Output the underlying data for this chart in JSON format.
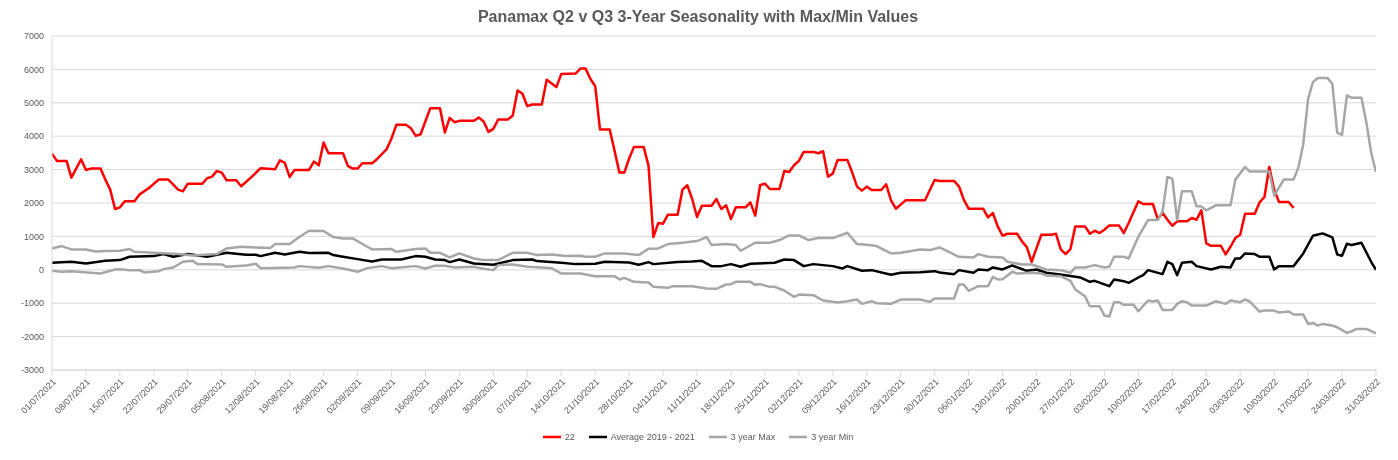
{
  "chart_data": {
    "type": "line",
    "title": "Panamax Q2 v Q3 3-Year Seasonality with Max/Min Values",
    "xlim": [
      "2021-07-01",
      "2022-03-31"
    ],
    "xticks": [
      {
        "value": "2021-07-01",
        "label": "01/07/2021"
      },
      {
        "value": "2021-07-08",
        "label": "08/07/2021"
      },
      {
        "value": "2021-07-15",
        "label": "15/07/2021"
      },
      {
        "value": "2021-07-22",
        "label": "22/07/2021"
      },
      {
        "value": "2021-07-29",
        "label": "29/07/2021"
      },
      {
        "value": "2021-08-05",
        "label": "05/08/2021"
      },
      {
        "value": "2021-08-12",
        "label": "12/08/2021"
      },
      {
        "value": "2021-08-19",
        "label": "19/08/2021"
      },
      {
        "value": "2021-08-26",
        "label": "26/08/2021"
      },
      {
        "value": "2021-09-02",
        "label": "02/09/2021"
      },
      {
        "value": "2021-09-09",
        "label": "09/09/2021"
      },
      {
        "value": "2021-09-16",
        "label": "16/09/2021"
      },
      {
        "value": "2021-09-23",
        "label": "23/09/2021"
      },
      {
        "value": "2021-09-30",
        "label": "30/09/2021"
      },
      {
        "value": "2021-10-07",
        "label": "07/10/2021"
      },
      {
        "value": "2021-10-14",
        "label": "14/10/2021"
      },
      {
        "value": "2021-10-21",
        "label": "21/10/2021"
      },
      {
        "value": "2021-10-28",
        "label": "28/10/2021"
      },
      {
        "value": "2021-11-04",
        "label": "04/11/2021"
      },
      {
        "value": "2021-11-11",
        "label": "11/11/2021"
      },
      {
        "value": "2021-11-18",
        "label": "18/11/2021"
      },
      {
        "value": "2021-11-25",
        "label": "25/11/2021"
      },
      {
        "value": "2021-12-02",
        "label": "02/12/2021"
      },
      {
        "value": "2021-12-09",
        "label": "09/12/2021"
      },
      {
        "value": "2021-12-16",
        "label": "16/12/2021"
      },
      {
        "value": "2021-12-23",
        "label": "23/12/2021"
      },
      {
        "value": "2021-12-30",
        "label": "30/12/2021"
      },
      {
        "value": "2022-01-06",
        "label": "06/01/2022"
      },
      {
        "value": "2022-01-13",
        "label": "13/01/2022"
      },
      {
        "value": "2022-01-20",
        "label": "20/01/2022"
      },
      {
        "value": "2022-01-27",
        "label": "27/01/2022"
      },
      {
        "value": "2022-02-03",
        "label": "03/02/2022"
      },
      {
        "value": "2022-02-10",
        "label": "10/02/2022"
      },
      {
        "value": "2022-02-17",
        "label": "17/02/2022"
      },
      {
        "value": "2022-02-24",
        "label": "24/02/2022"
      },
      {
        "value": "2022-03-03",
        "label": "03/03/2022"
      },
      {
        "value": "2022-03-10",
        "label": "10/03/2022"
      },
      {
        "value": "2022-03-17",
        "label": "17/03/2022"
      },
      {
        "value": "2022-03-24",
        "label": "24/03/2022"
      },
      {
        "value": "2022-03-31",
        "label": "31/03/2022"
      }
    ],
    "ylim": [
      -3000,
      7000
    ],
    "yticks": [
      -3000,
      -2000,
      -1000,
      0,
      1000,
      2000,
      3000,
      4000,
      5000,
      6000,
      7000
    ],
    "grid": "y",
    "legend": "bottom",
    "series": [
      {
        "name": "22",
        "color": "#ff0000",
        "x": [
          "2021-07-01",
          "2021-07-02",
          "2021-07-04",
          "2021-07-05",
          "2021-07-07",
          "2021-07-08",
          "2021-07-09",
          "2021-07-11",
          "2021-07-12",
          "2021-07-13",
          "2021-07-14",
          "2021-07-15",
          "2021-07-16",
          "2021-07-18",
          "2021-07-19",
          "2021-07-21",
          "2021-07-23",
          "2021-07-25",
          "2021-07-27",
          "2021-07-28",
          "2021-07-29",
          "2021-08-01",
          "2021-08-02",
          "2021-08-03",
          "2021-08-04",
          "2021-08-05",
          "2021-08-06",
          "2021-08-08",
          "2021-08-09",
          "2021-08-11",
          "2021-08-13",
          "2021-08-16",
          "2021-08-17",
          "2021-08-18",
          "2021-08-19",
          "2021-08-20",
          "2021-08-23",
          "2021-08-24",
          "2021-08-25",
          "2021-08-26",
          "2021-08-27",
          "2021-08-30",
          "2021-08-31",
          "2021-09-01",
          "2021-09-02",
          "2021-09-03",
          "2021-09-05",
          "2021-09-06",
          "2021-09-08",
          "2021-09-09",
          "2021-09-10",
          "2021-09-12",
          "2021-09-13",
          "2021-09-14",
          "2021-09-15",
          "2021-09-17",
          "2021-09-19",
          "2021-09-20",
          "2021-09-21",
          "2021-09-22",
          "2021-09-23",
          "2021-09-26",
          "2021-09-27",
          "2021-09-28",
          "2021-09-29",
          "2021-09-30",
          "2021-10-01",
          "2021-10-03",
          "2021-10-04",
          "2021-10-05",
          "2021-10-06",
          "2021-10-07",
          "2021-10-08",
          "2021-10-10",
          "2021-10-11",
          "2021-10-13",
          "2021-10-14",
          "2021-10-17",
          "2021-10-18",
          "2021-10-19",
          "2021-10-20",
          "2021-10-21",
          "2021-10-22",
          "2021-10-24",
          "2021-10-25",
          "2021-10-26",
          "2021-10-27",
          "2021-10-28",
          "2021-10-29",
          "2021-10-31",
          "2021-11-01",
          "2021-11-02",
          "2021-11-03",
          "2021-11-04",
          "2021-11-05",
          "2021-11-07",
          "2021-11-08",
          "2021-11-09",
          "2021-11-10",
          "2021-11-11",
          "2021-11-12",
          "2021-11-14",
          "2021-11-15",
          "2021-11-16",
          "2021-11-17",
          "2021-11-18",
          "2021-11-19",
          "2021-11-21",
          "2021-11-22",
          "2021-11-23",
          "2021-11-24",
          "2021-11-25",
          "2021-11-26",
          "2021-11-28",
          "2021-11-29",
          "2021-11-30",
          "2021-12-01",
          "2021-12-02",
          "2021-12-03",
          "2021-12-05",
          "2021-12-06",
          "2021-12-07",
          "2021-12-08",
          "2021-12-09",
          "2021-12-10",
          "2021-12-12",
          "2021-12-13",
          "2021-12-14",
          "2021-12-15",
          "2021-12-16",
          "2021-12-17",
          "2021-12-19",
          "2021-12-20",
          "2021-12-21",
          "2021-12-22",
          "2021-12-24",
          "2021-12-28",
          "2021-12-30",
          "2021-12-31",
          "2022-01-03",
          "2022-01-04",
          "2022-01-05",
          "2022-01-06",
          "2022-01-09",
          "2022-01-10",
          "2022-01-11",
          "2022-01-12",
          "2022-01-13",
          "2022-01-14",
          "2022-01-16",
          "2022-01-17",
          "2022-01-18",
          "2022-01-19",
          "2022-01-20",
          "2022-01-21",
          "2022-01-23",
          "2022-01-24",
          "2022-01-25",
          "2022-01-26",
          "2022-01-27",
          "2022-01-28",
          "2022-01-30",
          "2022-01-31",
          "2022-02-01",
          "2022-02-02",
          "2022-02-03",
          "2022-02-04",
          "2022-02-06",
          "2022-02-07",
          "2022-02-08",
          "2022-02-10",
          "2022-02-11",
          "2022-02-13",
          "2022-02-14",
          "2022-02-15",
          "2022-02-16",
          "2022-02-17",
          "2022-02-18",
          "2022-02-20",
          "2022-02-21",
          "2022-02-22",
          "2022-02-23",
          "2022-02-24",
          "2022-02-25",
          "2022-02-27",
          "2022-02-28",
          "2022-03-01",
          "2022-03-02",
          "2022-03-03",
          "2022-03-04",
          "2022-03-06",
          "2022-03-07",
          "2022-03-08",
          "2022-03-09",
          "2022-03-10",
          "2022-03-11",
          "2022-03-13",
          "2022-03-14"
        ],
        "values": [
          3480,
          3260,
          3260,
          2760,
          3310,
          2990,
          3030,
          3030,
          2700,
          2400,
          1820,
          1870,
          2050,
          2050,
          2250,
          2450,
          2700,
          2700,
          2400,
          2350,
          2580,
          2580,
          2740,
          2790,
          2960,
          2910,
          2680,
          2680,
          2500,
          2760,
          3040,
          3010,
          3280,
          3200,
          2780,
          2990,
          2990,
          3240,
          3130,
          3810,
          3490,
          3490,
          3110,
          3030,
          3030,
          3190,
          3190,
          3310,
          3610,
          3930,
          4340,
          4340,
          4240,
          4010,
          4060,
          4840,
          4840,
          4110,
          4550,
          4420,
          4460,
          4460,
          4560,
          4440,
          4130,
          4220,
          4500,
          4500,
          4620,
          5370,
          5270,
          4900,
          4950,
          4950,
          5690,
          5470,
          5860,
          5880,
          6030,
          6030,
          5720,
          5500,
          4200,
          4200,
          3560,
          2910,
          2910,
          3330,
          3680,
          3680,
          3110,
          980,
          1400,
          1380,
          1650,
          1650,
          2400,
          2530,
          2120,
          1580,
          1920,
          1920,
          2120,
          1820,
          1930,
          1520,
          1870,
          1870,
          2020,
          1620,
          2530,
          2580,
          2420,
          2420,
          2960,
          2930,
          3130,
          3260,
          3530,
          3530,
          3490,
          3550,
          2790,
          2880,
          3290,
          3290,
          2910,
          2490,
          2370,
          2490,
          2390,
          2390,
          2560,
          2080,
          1830,
          2080,
          2080,
          2690,
          2660,
          2660,
          2500,
          2100,
          1830,
          1830,
          1570,
          1700,
          1300,
          1020,
          1080,
          1080,
          850,
          680,
          240,
          650,
          1050,
          1050,
          1080,
          610,
          470,
          620,
          1300,
          1300,
          1080,
          1170,
          1100,
          1200,
          1330,
          1330,
          1100,
          1400,
          2050,
          1970,
          1970,
          1520,
          1700,
          1500,
          1320,
          1450,
          1450,
          1550,
          1500,
          1780,
          790,
          720,
          720,
          460,
          690,
          950,
          1050,
          1680,
          1680,
          2020,
          2180,
          3080,
          2400,
          2030,
          2030,
          1850
        ]
      },
      {
        "name": "Average 2019 - 2021",
        "color": "#000000",
        "x": [
          "2021-07-01",
          "2021-07-05",
          "2021-07-08",
          "2021-07-12",
          "2021-07-15",
          "2021-07-17",
          "2021-07-22",
          "2021-07-24",
          "2021-07-26",
          "2021-07-29",
          "2021-08-02",
          "2021-08-06",
          "2021-08-10",
          "2021-08-12",
          "2021-08-13",
          "2021-08-16",
          "2021-08-18",
          "2021-08-21",
          "2021-08-23",
          "2021-08-27",
          "2021-08-28",
          "2021-08-30",
          "2021-09-02",
          "2021-09-05",
          "2021-09-07",
          "2021-09-11",
          "2021-09-14",
          "2021-09-16",
          "2021-09-18",
          "2021-09-20",
          "2021-09-21",
          "2021-09-23",
          "2021-09-26",
          "2021-09-30",
          "2021-10-04",
          "2021-10-08",
          "2021-10-09",
          "2021-10-14",
          "2021-10-17",
          "2021-10-21",
          "2021-10-23",
          "2021-10-28",
          "2021-10-30",
          "2021-11-01",
          "2021-11-02",
          "2021-11-07",
          "2021-11-10",
          "2021-11-12",
          "2021-11-14",
          "2021-11-16",
          "2021-11-18",
          "2021-11-20",
          "2021-11-22",
          "2021-11-27",
          "2021-11-29",
          "2021-12-01",
          "2021-12-03",
          "2021-12-05",
          "2021-12-09",
          "2021-12-11",
          "2021-12-12",
          "2021-12-15",
          "2021-12-17",
          "2021-12-21",
          "2021-12-23",
          "2021-12-27",
          "2021-12-30",
          "2021-12-31",
          "2022-01-03",
          "2022-01-04",
          "2022-01-07",
          "2022-01-08",
          "2022-01-10",
          "2022-01-11",
          "2022-01-13",
          "2022-01-15",
          "2022-01-18",
          "2022-01-20",
          "2022-01-22",
          "2022-01-26",
          "2022-01-29",
          "2022-01-31",
          "2022-02-01",
          "2022-02-04",
          "2022-02-05",
          "2022-02-07",
          "2022-02-08",
          "2022-02-10",
          "2022-02-11",
          "2022-02-12",
          "2022-02-15",
          "2022-02-16",
          "2022-02-17",
          "2022-02-18",
          "2022-02-19",
          "2022-02-21",
          "2022-02-22",
          "2022-02-25",
          "2022-02-27",
          "2022-03-01",
          "2022-03-02",
          "2022-03-03",
          "2022-03-04",
          "2022-03-06",
          "2022-03-07",
          "2022-03-09",
          "2022-03-10",
          "2022-03-11",
          "2022-03-14",
          "2022-03-16",
          "2022-03-18",
          "2022-03-20",
          "2022-03-22",
          "2022-03-23",
          "2022-03-24",
          "2022-03-25",
          "2022-03-26",
          "2022-03-28",
          "2022-03-30",
          "2022-03-31"
        ],
        "values": [
          210,
          240,
          190,
          270,
          290,
          390,
          410,
          470,
          390,
          470,
          390,
          510,
          450,
          450,
          410,
          510,
          460,
          540,
          500,
          510,
          440,
          390,
          320,
          250,
          310,
          310,
          410,
          390,
          310,
          290,
          230,
          310,
          190,
          150,
          290,
          310,
          260,
          210,
          170,
          180,
          240,
          220,
          150,
          230,
          170,
          230,
          250,
          270,
          110,
          110,
          170,
          90,
          180,
          210,
          310,
          290,
          110,
          170,
          110,
          40,
          110,
          -30,
          -10,
          -150,
          -90,
          -70,
          -40,
          -80,
          -130,
          -10,
          -90,
          10,
          -10,
          70,
          10,
          130,
          -30,
          10,
          -90,
          -160,
          -230,
          -360,
          -330,
          -490,
          -290,
          -340,
          -390,
          -230,
          -160,
          -10,
          -130,
          240,
          170,
          -160,
          210,
          240,
          110,
          10,
          90,
          70,
          340,
          340,
          490,
          470,
          390,
          390,
          10,
          110,
          110,
          490,
          1020,
          1090,
          970,
          460,
          420,
          780,
          740,
          810,
          240,
          0
        ]
      },
      {
        "name": "3 year Max",
        "color": "#a6a6a6",
        "x": [
          "2021-07-01",
          "2021-07-03",
          "2021-07-05",
          "2021-07-08",
          "2021-07-10",
          "2021-07-12",
          "2021-07-15",
          "2021-07-17",
          "2021-07-18",
          "2021-07-22",
          "2021-07-27",
          "2021-07-30",
          "2021-08-04",
          "2021-08-06",
          "2021-08-09",
          "2021-08-12",
          "2021-08-15",
          "2021-08-16",
          "2021-08-19",
          "2021-08-21",
          "2021-08-23",
          "2021-08-26",
          "2021-08-28",
          "2021-08-30",
          "2021-09-01",
          "2021-09-04",
          "2021-09-05",
          "2021-09-09",
          "2021-09-10",
          "2021-09-14",
          "2021-09-16",
          "2021-09-17",
          "2021-09-19",
          "2021-09-21",
          "2021-09-23",
          "2021-09-26",
          "2021-09-28",
          "2021-10-01",
          "2021-10-04",
          "2021-10-07",
          "2021-10-09",
          "2021-10-12",
          "2021-10-15",
          "2021-10-18",
          "2021-10-19",
          "2021-10-21",
          "2021-10-23",
          "2021-10-27",
          "2021-10-30",
          "2021-11-01",
          "2021-11-03",
          "2021-11-05",
          "2021-11-08",
          "2021-11-11",
          "2021-11-13",
          "2021-11-14",
          "2021-11-17",
          "2021-11-19",
          "2021-11-20",
          "2021-11-23",
          "2021-11-26",
          "2021-11-28",
          "2021-11-30",
          "2021-12-02",
          "2021-12-04",
          "2021-12-06",
          "2021-12-09",
          "2021-12-12",
          "2021-12-14",
          "2021-12-16",
          "2021-12-18",
          "2021-12-21",
          "2021-12-23",
          "2021-12-27",
          "2021-12-29",
          "2021-12-31",
          "2022-01-04",
          "2022-01-07",
          "2022-01-08",
          "2022-01-10",
          "2022-01-13",
          "2022-01-14",
          "2022-01-17",
          "2022-01-19",
          "2022-01-22",
          "2022-01-25",
          "2022-01-27",
          "2022-01-28",
          "2022-01-30",
          "2022-02-01",
          "2022-02-03",
          "2022-02-04",
          "2022-02-05",
          "2022-02-07",
          "2022-02-08",
          "2022-02-10",
          "2022-02-12",
          "2022-02-14",
          "2022-02-15",
          "2022-02-16",
          "2022-02-17",
          "2022-02-18",
          "2022-02-19",
          "2022-02-21",
          "2022-02-22",
          "2022-02-23",
          "2022-02-24",
          "2022-02-26",
          "2022-03-01",
          "2022-03-02",
          "2022-03-04",
          "2022-03-05",
          "2022-03-09",
          "2022-03-10",
          "2022-03-12",
          "2022-03-14",
          "2022-03-15",
          "2022-03-16",
          "2022-03-17",
          "2022-03-18",
          "2022-03-19",
          "2022-03-21",
          "2022-03-22",
          "2022-03-23",
          "2022-03-24",
          "2022-03-25",
          "2022-03-26",
          "2022-03-28",
          "2022-03-29",
          "2022-03-30",
          "2022-03-31"
        ],
        "values": [
          640,
          710,
          610,
          610,
          550,
          560,
          570,
          620,
          540,
          510,
          470,
          430,
          470,
          640,
          690,
          670,
          650,
          770,
          770,
          980,
          1170,
          1160,
          980,
          940,
          940,
          690,
          610,
          620,
          540,
          620,
          640,
          510,
          510,
          370,
          490,
          340,
          290,
          290,
          510,
          510,
          440,
          460,
          410,
          420,
          390,
          390,
          490,
          490,
          440,
          630,
          640,
          770,
          810,
          860,
          980,
          740,
          770,
          740,
          570,
          810,
          810,
          890,
          1030,
          1030,
          890,
          950,
          950,
          1110,
          770,
          750,
          710,
          490,
          510,
          610,
          590,
          670,
          390,
          370,
          470,
          390,
          370,
          240,
          160,
          160,
          10,
          -10,
          -90,
          70,
          70,
          140,
          70,
          90,
          390,
          390,
          340,
          990,
          1490,
          1490,
          1750,
          2780,
          2730,
          1490,
          2350,
          2350,
          1900,
          1900,
          1780,
          1930,
          1930,
          2700,
          3080,
          2940,
          2940,
          2220,
          2700,
          2700,
          3060,
          3760,
          5120,
          5620,
          5740,
          5740,
          5570,
          4110,
          4040,
          5220,
          5150,
          5150,
          4420,
          3510,
          2930
        ]
      },
      {
        "name": "3 year Min",
        "color": "#a6a6a6",
        "x": [
          "2021-07-01",
          "2021-07-03",
          "2021-07-05",
          "2021-07-09",
          "2021-07-11",
          "2021-07-14",
          "2021-07-15",
          "2021-07-17",
          "2021-07-19",
          "2021-07-20",
          "2021-07-23",
          "2021-07-24",
          "2021-07-26",
          "2021-07-28",
          "2021-07-30",
          "2021-07-31",
          "2021-08-05",
          "2021-08-06",
          "2021-08-10",
          "2021-08-12",
          "2021-08-13",
          "2021-08-20",
          "2021-08-21",
          "2021-08-25",
          "2021-08-27",
          "2021-08-30",
          "2021-09-02",
          "2021-09-04",
          "2021-09-07",
          "2021-09-09",
          "2021-09-14",
          "2021-09-16",
          "2021-09-18",
          "2021-09-20",
          "2021-09-22",
          "2021-09-26",
          "2021-09-28",
          "2021-09-30",
          "2021-10-01",
          "2021-10-04",
          "2021-10-07",
          "2021-10-10",
          "2021-10-12",
          "2021-10-14",
          "2021-10-18",
          "2021-10-21",
          "2021-10-25",
          "2021-10-26",
          "2021-10-27",
          "2021-10-29",
          "2021-11-01",
          "2021-11-02",
          "2021-11-05",
          "2021-11-06",
          "2021-11-10",
          "2021-11-13",
          "2021-11-15",
          "2021-11-17",
          "2021-11-18",
          "2021-11-19",
          "2021-11-22",
          "2021-11-23",
          "2021-11-24",
          "2021-11-26",
          "2021-11-27",
          "2021-11-29",
          "2021-12-01",
          "2021-12-02",
          "2021-12-05",
          "2021-12-07",
          "2021-12-10",
          "2021-12-12",
          "2021-12-14",
          "2021-12-15",
          "2021-12-17",
          "2021-12-18",
          "2021-12-21",
          "2021-12-23",
          "2021-12-27",
          "2021-12-29",
          "2021-12-30",
          "2022-01-03",
          "2022-01-04",
          "2022-01-05",
          "2022-01-06",
          "2022-01-08",
          "2022-01-10",
          "2022-01-11",
          "2022-01-12",
          "2022-01-13",
          "2022-01-15",
          "2022-01-16",
          "2022-01-19",
          "2022-01-21",
          "2022-01-22",
          "2022-01-25",
          "2022-01-27",
          "2022-01-28",
          "2022-01-30",
          "2022-01-31",
          "2022-02-02",
          "2022-02-03",
          "2022-02-04",
          "2022-02-05",
          "2022-02-06",
          "2022-02-07",
          "2022-02-09",
          "2022-02-10",
          "2022-02-12",
          "2022-02-13",
          "2022-02-14",
          "2022-02-15",
          "2022-02-17",
          "2022-02-18",
          "2022-02-19",
          "2022-02-20",
          "2022-02-21",
          "2022-02-24",
          "2022-02-26",
          "2022-02-28",
          "2022-03-01",
          "2022-03-03",
          "2022-03-04",
          "2022-03-05",
          "2022-03-07",
          "2022-03-08",
          "2022-03-10",
          "2022-03-11",
          "2022-03-13",
          "2022-03-14",
          "2022-03-16",
          "2022-03-17",
          "2022-03-18",
          "2022-03-19",
          "2022-03-20",
          "2022-03-22",
          "2022-03-23",
          "2022-03-25",
          "2022-03-26",
          "2022-03-27",
          "2022-03-29",
          "2022-03-31"
        ],
        "values": [
          -30,
          -60,
          -40,
          -90,
          -110,
          10,
          20,
          -10,
          -10,
          -80,
          -40,
          20,
          70,
          240,
          270,
          170,
          160,
          90,
          130,
          180,
          50,
          70,
          110,
          60,
          110,
          40,
          -60,
          50,
          110,
          50,
          110,
          40,
          120,
          120,
          70,
          90,
          30,
          -10,
          140,
          160,
          90,
          70,
          50,
          -110,
          -110,
          -190,
          -190,
          -290,
          -240,
          -360,
          -380,
          -510,
          -540,
          -490,
          -490,
          -560,
          -570,
          -440,
          -430,
          -360,
          -360,
          -450,
          -430,
          -510,
          -510,
          -620,
          -810,
          -740,
          -760,
          -920,
          -980,
          -940,
          -890,
          -1020,
          -940,
          -1000,
          -1020,
          -890,
          -890,
          -960,
          -860,
          -860,
          -440,
          -440,
          -630,
          -490,
          -490,
          -210,
          -290,
          -280,
          -60,
          -110,
          -90,
          -110,
          -170,
          -190,
          -330,
          -590,
          -790,
          -1090,
          -1090,
          -1370,
          -1400,
          -970,
          -970,
          -1050,
          -1050,
          -1240,
          -920,
          -950,
          -920,
          -1200,
          -1200,
          -1020,
          -940,
          -970,
          -1070,
          -1070,
          -940,
          -1020,
          -920,
          -970,
          -890,
          -950,
          -1250,
          -1220,
          -1220,
          -1280,
          -1250,
          -1340,
          -1340,
          -1620,
          -1590,
          -1670,
          -1620,
          -1670,
          -1720,
          -1890,
          -1840,
          -1770,
          -1770,
          -1900
        ]
      }
    ]
  }
}
